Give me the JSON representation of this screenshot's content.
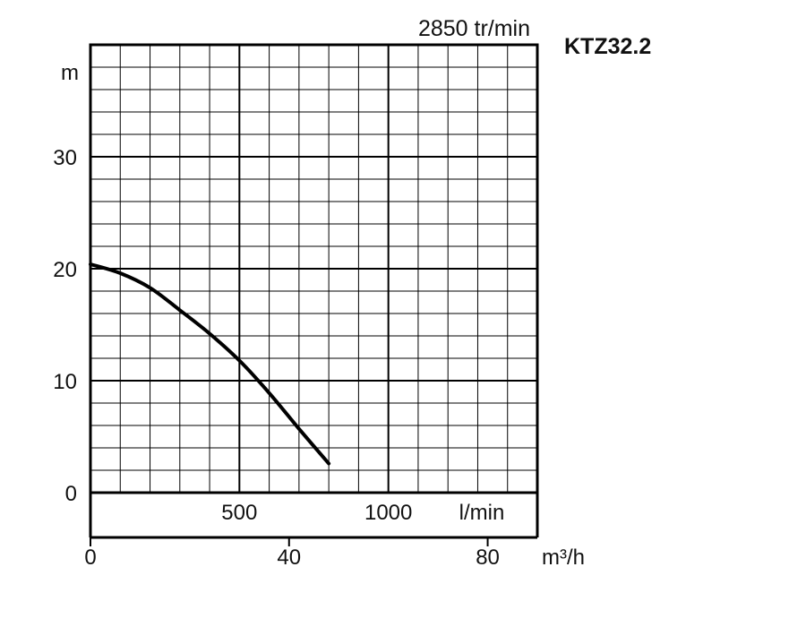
{
  "chart_data": {
    "type": "line",
    "title": "KTZ32.2",
    "subtitle": "2850 tr/min",
    "ylabel": "m",
    "ylim": [
      0,
      40
    ],
    "y_ticks": [
      "0",
      "10",
      "20",
      "30"
    ],
    "y_tick_values": [
      0,
      10,
      20,
      30
    ],
    "xlim_lmin": [
      0,
      1500
    ],
    "x_ticks_lmin": [
      "500",
      "1000"
    ],
    "x_tick_values_lmin": [
      500,
      1000
    ],
    "x_unit_lmin": "l/min",
    "xlim_m3h": [
      0,
      90
    ],
    "x_ticks_m3h": [
      "0",
      "40",
      "80"
    ],
    "x_tick_values_m3h": [
      0,
      40,
      80
    ],
    "x_unit_m3h": "m³/h",
    "grid": true,
    "series": [
      {
        "x": [
          0,
          100,
          200,
          300,
          400,
          500,
          600,
          700,
          800
        ],
        "y": [
          20.4,
          19.6,
          18.3,
          16.3,
          14.2,
          11.8,
          8.9,
          5.7,
          2.6
        ]
      }
    ]
  }
}
